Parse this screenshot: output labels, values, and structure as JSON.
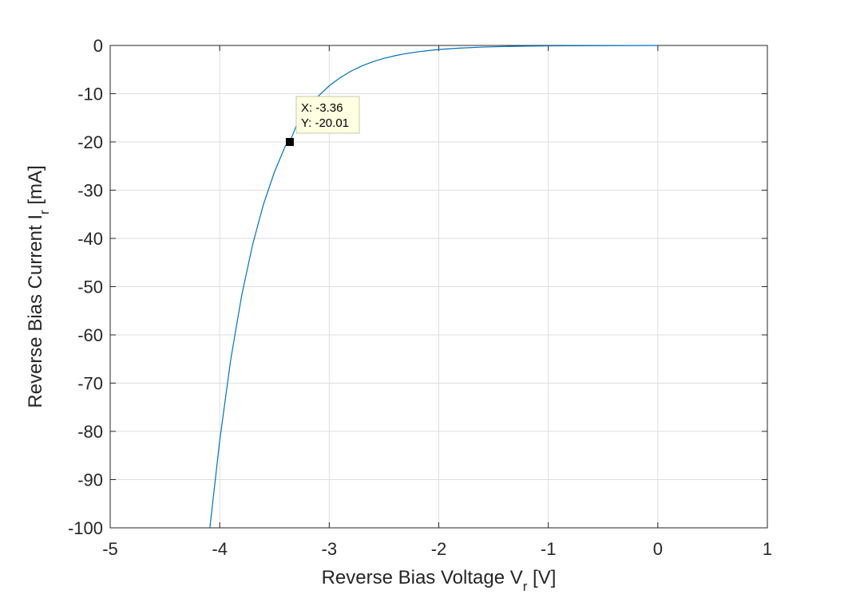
{
  "chart_data": {
    "type": "line",
    "title": "",
    "xlabel": "Reverse Bias Voltage V",
    "xlabel_sub": "r",
    "xlabel_unit": " [V]",
    "ylabel": "Reverse Bias Current I",
    "ylabel_sub": "r",
    "ylabel_unit": " [mA]",
    "xlim": [
      -5,
      1
    ],
    "ylim": [
      -100,
      0
    ],
    "x_ticks": [
      -5,
      -4,
      -3,
      -2,
      -1,
      0,
      1
    ],
    "y_ticks": [
      0,
      -10,
      -20,
      -30,
      -40,
      -50,
      -60,
      -70,
      -80,
      -90,
      -100
    ],
    "x_tick_labels": [
      "-5",
      "-4",
      "-3",
      "-2",
      "-1",
      "0",
      "1"
    ],
    "y_tick_labels": [
      "0",
      "-10",
      "-20",
      "-30",
      "-40",
      "-50",
      "-60",
      "-70",
      "-80",
      "-90",
      "-100"
    ],
    "grid": true,
    "series": [
      {
        "color": "#0072bd",
        "x": [
          -4.09,
          -4.0,
          -3.9,
          -3.8,
          -3.7,
          -3.6,
          -3.5,
          -3.4,
          -3.36,
          -3.3,
          -3.2,
          -3.1,
          -3.0,
          -2.9,
          -2.8,
          -2.7,
          -2.6,
          -2.5,
          -2.4,
          -2.3,
          -2.2,
          -2.1,
          -2.0,
          -1.9,
          -1.8,
          -1.6,
          -1.4,
          -1.2,
          -1.0,
          -0.8,
          -0.5,
          -0.25,
          0.0
        ],
        "y": [
          -100,
          -81.9,
          -65.2,
          -51.9,
          -41.3,
          -32.9,
          -26.2,
          -20.8,
          -20.01,
          -16.6,
          -13.2,
          -10.5,
          -8.37,
          -6.67,
          -5.31,
          -4.22,
          -3.36,
          -2.68,
          -2.13,
          -1.69,
          -1.35,
          -1.07,
          -0.85,
          -0.68,
          -0.54,
          -0.34,
          -0.22,
          -0.14,
          -0.09,
          -0.06,
          -0.04,
          -0.02,
          0.0
        ]
      }
    ],
    "datatip": {
      "x": -3.36,
      "y": -20.01,
      "x_text": "X: -3.36",
      "y_text": "Y: -20.01"
    }
  }
}
